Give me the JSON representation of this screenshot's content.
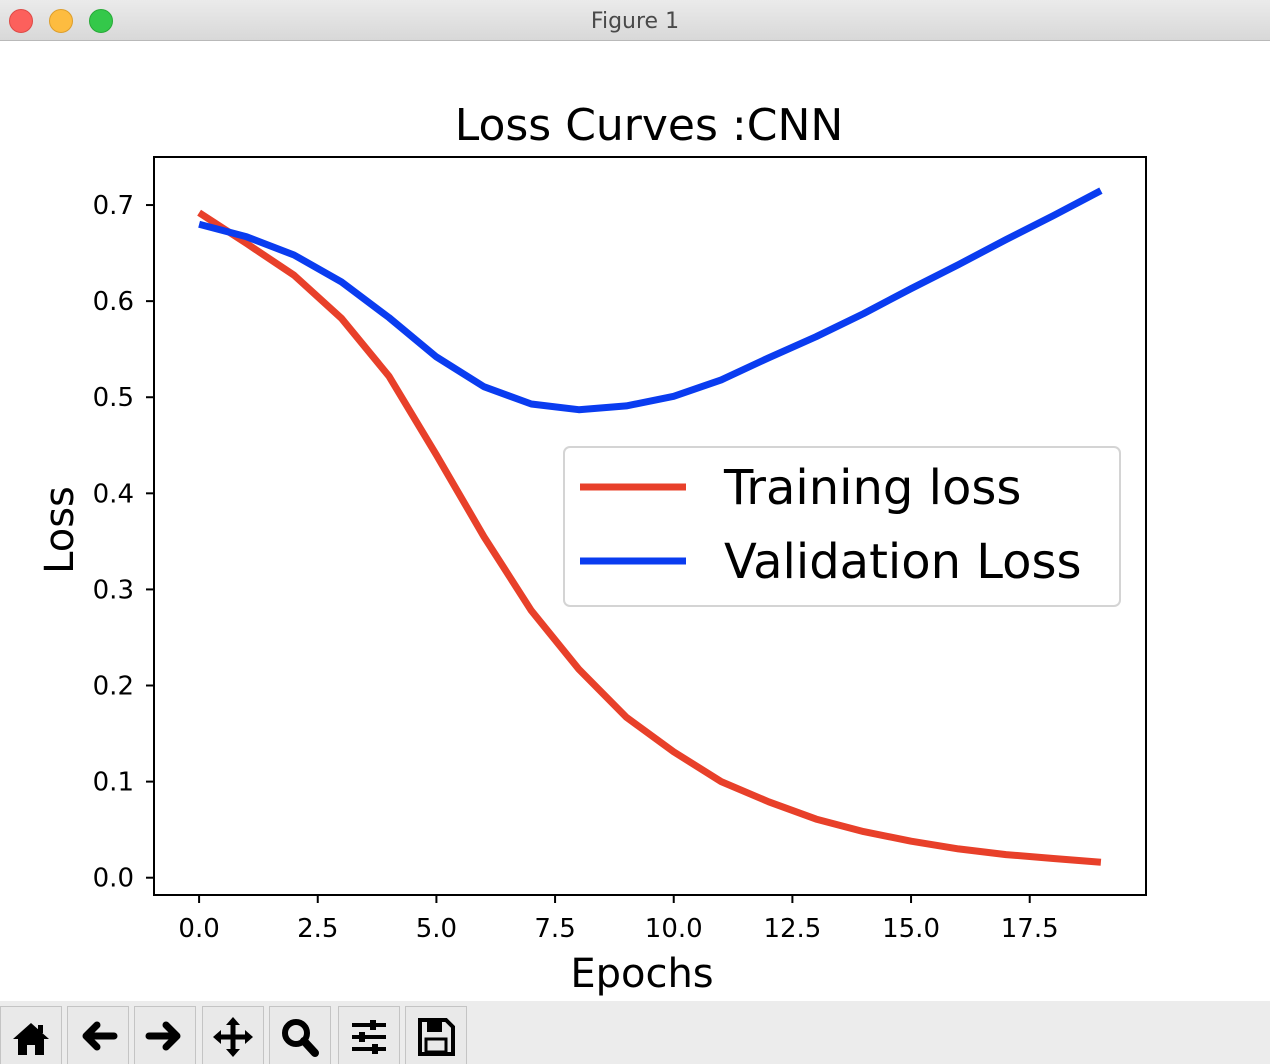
{
  "window": {
    "title": "Figure 1"
  },
  "toolbar": {
    "buttons": [
      {
        "icon": "home-icon"
      },
      {
        "icon": "arrow-left-icon"
      },
      {
        "icon": "arrow-right-icon"
      },
      {
        "icon": "move-icon"
      },
      {
        "icon": "zoom-icon"
      },
      {
        "icon": "sliders-icon"
      },
      {
        "icon": "save-icon"
      }
    ]
  },
  "chart_data": {
    "type": "line",
    "title": "Loss Curves :CNN",
    "xlabel": "Epochs",
    "ylabel": "Loss",
    "xlim": [
      -0.95,
      19.95
    ],
    "ylim": [
      -0.018,
      0.75
    ],
    "xticks": [
      0.0,
      2.5,
      5.0,
      7.5,
      10.0,
      12.5,
      15.0,
      17.5
    ],
    "xtick_labels": [
      "0.0",
      "2.5",
      "5.0",
      "7.5",
      "10.0",
      "12.5",
      "15.0",
      "17.5"
    ],
    "yticks": [
      0.0,
      0.1,
      0.2,
      0.3,
      0.4,
      0.5,
      0.6,
      0.7
    ],
    "ytick_labels": [
      "0.0",
      "0.1",
      "0.2",
      "0.3",
      "0.4",
      "0.5",
      "0.6",
      "0.7"
    ],
    "legend_position": "center-right",
    "x": [
      0,
      1,
      2,
      3,
      4,
      5,
      6,
      7,
      8,
      9,
      10,
      11,
      12,
      13,
      14,
      15,
      16,
      17,
      18,
      19
    ],
    "series": [
      {
        "name": "Training loss",
        "color": "#e8402a",
        "values": [
          0.692,
          0.66,
          0.627,
          0.582,
          0.522,
          0.44,
          0.355,
          0.278,
          0.217,
          0.167,
          0.131,
          0.1,
          0.079,
          0.061,
          0.048,
          0.038,
          0.03,
          0.024,
          0.02,
          0.016
        ]
      },
      {
        "name": "Validation Loss",
        "color": "#0a3cf0",
        "values": [
          0.68,
          0.667,
          0.648,
          0.62,
          0.583,
          0.542,
          0.511,
          0.493,
          0.487,
          0.491,
          0.501,
          0.518,
          0.541,
          0.563,
          0.587,
          0.613,
          0.638,
          0.664,
          0.689,
          0.715
        ]
      }
    ]
  }
}
